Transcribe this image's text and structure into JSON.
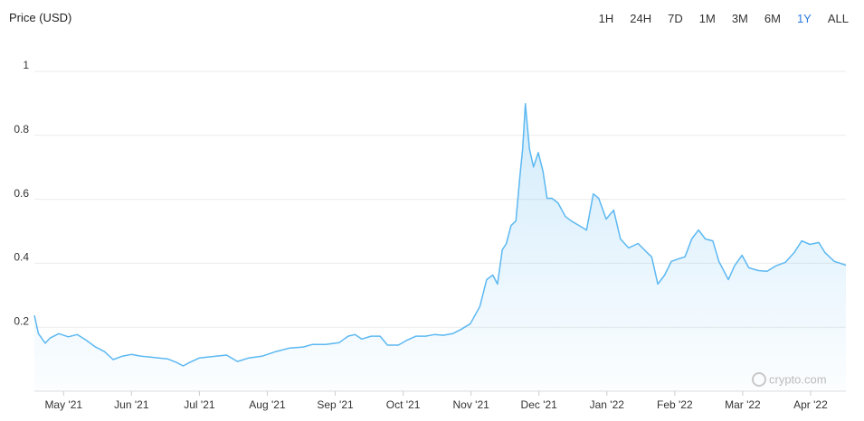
{
  "title": "Price (USD)",
  "ranges": [
    "1H",
    "24H",
    "7D",
    "1M",
    "3M",
    "6M",
    "1Y",
    "ALL"
  ],
  "active_range": "1Y",
  "watermark": "crypto.com",
  "chart_data": {
    "type": "area",
    "color": "#5cb8f2",
    "grid": true,
    "xlim": [
      4.57,
      16.52
    ],
    "ylim": [
      0,
      1
    ],
    "yticks": [
      0.2,
      0.4,
      0.6,
      0.8,
      1
    ],
    "xticks": [
      {
        "value": 5,
        "label": "May '21"
      },
      {
        "value": 6,
        "label": "Jun '21"
      },
      {
        "value": 7,
        "label": "Jul '21"
      },
      {
        "value": 8,
        "label": "Aug '21"
      },
      {
        "value": 9,
        "label": "Sep '21"
      },
      {
        "value": 10,
        "label": "Oct '21"
      },
      {
        "value": 11,
        "label": "Nov '21"
      },
      {
        "value": 12,
        "label": "Dec '21"
      },
      {
        "value": 13,
        "label": "Jan '22"
      },
      {
        "value": 14,
        "label": "Feb '22"
      },
      {
        "value": 15,
        "label": "Mar '22"
      },
      {
        "value": 16,
        "label": "Apr '22"
      }
    ],
    "series": [
      {
        "name": "Price",
        "x": [
          4.57,
          4.63,
          4.73,
          4.8,
          4.93,
          5.07,
          5.2,
          5.33,
          5.47,
          5.6,
          5.73,
          5.87,
          6.0,
          6.13,
          6.26,
          6.4,
          6.53,
          6.66,
          6.76,
          6.86,
          7.0,
          7.13,
          7.26,
          7.4,
          7.56,
          7.73,
          7.93,
          8.13,
          8.33,
          8.53,
          8.66,
          8.86,
          9.06,
          9.19,
          9.29,
          9.39,
          9.53,
          9.66,
          9.77,
          9.93,
          10.06,
          10.19,
          10.33,
          10.46,
          10.59,
          10.73,
          10.86,
          10.99,
          11.13,
          11.23,
          11.32,
          11.39,
          11.46,
          11.52,
          11.59,
          11.66,
          11.72,
          11.76,
          11.8,
          11.86,
          11.92,
          11.99,
          12.06,
          12.12,
          12.19,
          12.28,
          12.39,
          12.48,
          12.59,
          12.7,
          12.8,
          12.88,
          12.99,
          13.1,
          13.2,
          13.32,
          13.46,
          13.59,
          13.66,
          13.75,
          13.85,
          13.95,
          14.06,
          14.15,
          14.25,
          14.35,
          14.45,
          14.56,
          14.65,
          14.79,
          14.88,
          14.99,
          15.09,
          15.23,
          15.36,
          15.49,
          15.63,
          15.76,
          15.87,
          15.99,
          16.12,
          16.21,
          16.35,
          16.52
        ],
        "values": [
          0.237,
          0.18,
          0.15,
          0.166,
          0.18,
          0.17,
          0.177,
          0.16,
          0.138,
          0.124,
          0.099,
          0.11,
          0.115,
          0.11,
          0.107,
          0.104,
          0.101,
          0.09,
          0.079,
          0.09,
          0.104,
          0.107,
          0.11,
          0.113,
          0.093,
          0.104,
          0.11,
          0.124,
          0.135,
          0.138,
          0.146,
          0.146,
          0.152,
          0.172,
          0.177,
          0.163,
          0.172,
          0.172,
          0.144,
          0.144,
          0.16,
          0.172,
          0.172,
          0.177,
          0.175,
          0.18,
          0.194,
          0.211,
          0.265,
          0.349,
          0.363,
          0.335,
          0.442,
          0.462,
          0.518,
          0.532,
          0.673,
          0.758,
          0.899,
          0.758,
          0.701,
          0.746,
          0.687,
          0.603,
          0.603,
          0.589,
          0.546,
          0.532,
          0.518,
          0.504,
          0.617,
          0.603,
          0.538,
          0.566,
          0.476,
          0.448,
          0.462,
          0.434,
          0.42,
          0.335,
          0.363,
          0.406,
          0.414,
          0.42,
          0.476,
          0.504,
          0.476,
          0.47,
          0.406,
          0.349,
          0.392,
          0.425,
          0.386,
          0.377,
          0.375,
          0.392,
          0.403,
          0.434,
          0.47,
          0.459,
          0.465,
          0.434,
          0.406,
          0.394
        ]
      }
    ]
  }
}
